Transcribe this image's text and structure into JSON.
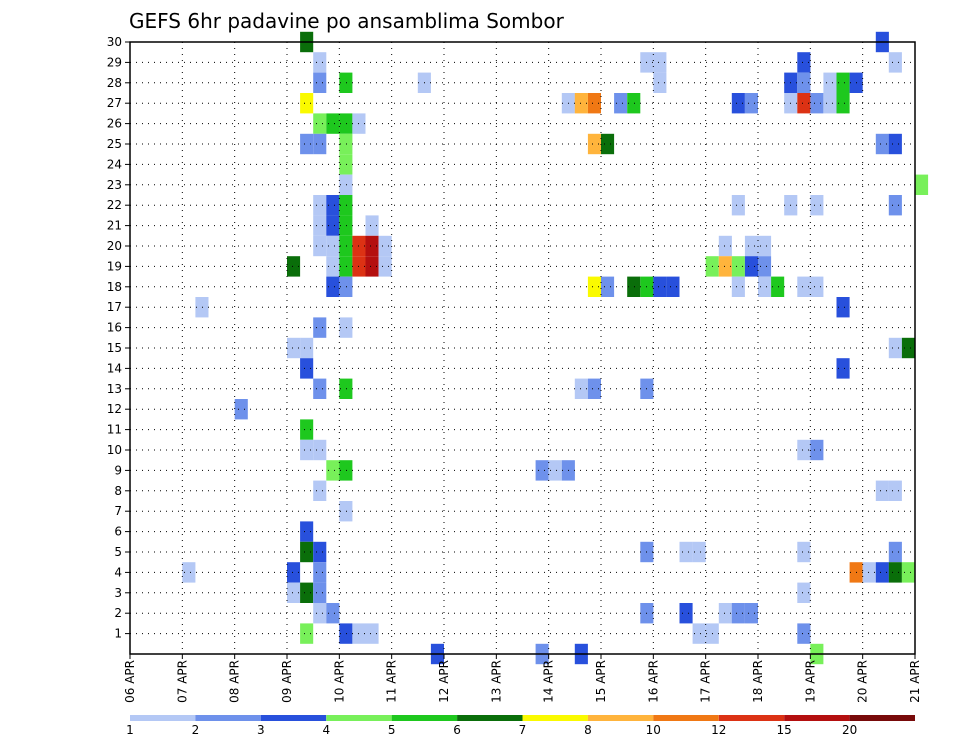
{
  "title": "GEFS 6hr padavine po ansamblima Sombor",
  "chart_data": {
    "type": "heatmap",
    "title": "GEFS 6hr padavine po ansamblima Sombor",
    "x_ticks": [
      "06 APR",
      "07 APR",
      "08 APR",
      "09 APR",
      "10 APR",
      "11 APR",
      "12 APR",
      "13 APR",
      "14 APR",
      "15 APR",
      "16 APR",
      "17 APR",
      "18 APR",
      "19 APR",
      "20 APR",
      "21 APR"
    ],
    "x_range": [
      0,
      15
    ],
    "y_ticks": [
      1,
      2,
      3,
      4,
      5,
      6,
      7,
      8,
      9,
      10,
      11,
      12,
      13,
      14,
      15,
      16,
      17,
      18,
      19,
      20,
      21,
      22,
      23,
      24,
      25,
      26,
      27,
      28,
      29,
      30
    ],
    "y_range": [
      0,
      30
    ],
    "grid": true,
    "colorbar": {
      "labels": [
        "1",
        "2",
        "3",
        "4",
        "5",
        "6",
        "7",
        "8",
        "10",
        "12",
        "15",
        "20"
      ],
      "colors": [
        "#b4c8f5",
        "#6e91eb",
        "#2850dc",
        "#78f05a",
        "#1ec81e",
        "#0a6e0a",
        "#fafa00",
        "#ffb43c",
        "#f07814",
        "#dc3214",
        "#b40f0f",
        "#780a0a"
      ]
    },
    "cells": [
      [
        3.25,
        30,
        5
      ],
      [
        14.25,
        30,
        2
      ],
      [
        3.5,
        29,
        0
      ],
      [
        9.75,
        29,
        0
      ],
      [
        10,
        29,
        0
      ],
      [
        12.75,
        29,
        2
      ],
      [
        14.5,
        29,
        0
      ],
      [
        3.5,
        28,
        1
      ],
      [
        4,
        28,
        4
      ],
      [
        5.5,
        28,
        0
      ],
      [
        10,
        28,
        0
      ],
      [
        12.5,
        28,
        2
      ],
      [
        12.75,
        28,
        1
      ],
      [
        13.25,
        28,
        0
      ],
      [
        13.5,
        28,
        4
      ],
      [
        13.75,
        28,
        2
      ],
      [
        3.25,
        27,
        6
      ],
      [
        8.25,
        27,
        0
      ],
      [
        8.5,
        27,
        7
      ],
      [
        8.75,
        27,
        8
      ],
      [
        9.25,
        27,
        1
      ],
      [
        9.5,
        27,
        4
      ],
      [
        11.5,
        27,
        2
      ],
      [
        11.75,
        27,
        1
      ],
      [
        12.5,
        27,
        0
      ],
      [
        12.75,
        27,
        9
      ],
      [
        13,
        27,
        1
      ],
      [
        13.25,
        27,
        0
      ],
      [
        13.5,
        27,
        4
      ],
      [
        3.5,
        26,
        3
      ],
      [
        3.75,
        26,
        4
      ],
      [
        4,
        26,
        4
      ],
      [
        4.25,
        26,
        0
      ],
      [
        3.25,
        25,
        1
      ],
      [
        3.5,
        25,
        1
      ],
      [
        4,
        25,
        3
      ],
      [
        8.75,
        25,
        7
      ],
      [
        9,
        25,
        5
      ],
      [
        14.25,
        25,
        1
      ],
      [
        14.5,
        25,
        2
      ],
      [
        4,
        24,
        3
      ],
      [
        4,
        23,
        0
      ],
      [
        15,
        23,
        3
      ],
      [
        3.5,
        22,
        0
      ],
      [
        3.75,
        22,
        2
      ],
      [
        4,
        22,
        4
      ],
      [
        11.5,
        22,
        0
      ],
      [
        12.5,
        22,
        0
      ],
      [
        13,
        22,
        0
      ],
      [
        14.5,
        22,
        1
      ],
      [
        3.5,
        21,
        0
      ],
      [
        3.75,
        21,
        2
      ],
      [
        4,
        21,
        4
      ],
      [
        4.5,
        21,
        0
      ],
      [
        3.5,
        20,
        0
      ],
      [
        3.75,
        20,
        0
      ],
      [
        4,
        20,
        4
      ],
      [
        4.25,
        20,
        9
      ],
      [
        4.5,
        20,
        10
      ],
      [
        4.75,
        20,
        0
      ],
      [
        11.25,
        20,
        0
      ],
      [
        11.75,
        20,
        0
      ],
      [
        12,
        20,
        0
      ],
      [
        3.75,
        19,
        0
      ],
      [
        4,
        19,
        4
      ],
      [
        4.25,
        19,
        9
      ],
      [
        4.5,
        19,
        10
      ],
      [
        4.75,
        19,
        0
      ],
      [
        11,
        19,
        3
      ],
      [
        11.25,
        19,
        7
      ],
      [
        11.5,
        19,
        3
      ],
      [
        11.75,
        19,
        2
      ],
      [
        12,
        19,
        1
      ],
      [
        3,
        19,
        5
      ],
      [
        3.75,
        18,
        2
      ],
      [
        4,
        18,
        1
      ],
      [
        8.75,
        18,
        6
      ],
      [
        9,
        18,
        1
      ],
      [
        9.5,
        18,
        5
      ],
      [
        9.75,
        18,
        4
      ],
      [
        10,
        18,
        2
      ],
      [
        10.25,
        18,
        2
      ],
      [
        11.5,
        18,
        0
      ],
      [
        12,
        18,
        0
      ],
      [
        12.25,
        18,
        4
      ],
      [
        12.75,
        18,
        0
      ],
      [
        13,
        18,
        0
      ],
      [
        1.25,
        17,
        0
      ],
      [
        13.5,
        17,
        2
      ],
      [
        3.5,
        16,
        1
      ],
      [
        4,
        16,
        0
      ],
      [
        3,
        15,
        0
      ],
      [
        3.25,
        15,
        0
      ],
      [
        14.5,
        15,
        0
      ],
      [
        14.75,
        15,
        5
      ],
      [
        3.25,
        14,
        2
      ],
      [
        13.5,
        14,
        2
      ],
      [
        3.5,
        13,
        1
      ],
      [
        4,
        13,
        4
      ],
      [
        8.5,
        13,
        0
      ],
      [
        8.75,
        13,
        1
      ],
      [
        9.75,
        13,
        1
      ],
      [
        2,
        12,
        1
      ],
      [
        3.25,
        11,
        4
      ],
      [
        3.25,
        10,
        0
      ],
      [
        3.5,
        10,
        0
      ],
      [
        12.75,
        10,
        0
      ],
      [
        13,
        10,
        1
      ],
      [
        3.75,
        9,
        3
      ],
      [
        4,
        9,
        4
      ],
      [
        7.75,
        9,
        1
      ],
      [
        8,
        9,
        0
      ],
      [
        8.25,
        9,
        1
      ],
      [
        3.5,
        8,
        0
      ],
      [
        14.25,
        8,
        0
      ],
      [
        14.5,
        8,
        0
      ],
      [
        4,
        7,
        0
      ],
      [
        3.25,
        6,
        2
      ],
      [
        3.25,
        5,
        5
      ],
      [
        3.5,
        5,
        2
      ],
      [
        9.75,
        5,
        1
      ],
      [
        10.5,
        5,
        0
      ],
      [
        10.75,
        5,
        0
      ],
      [
        12.75,
        5,
        0
      ],
      [
        14.5,
        5,
        1
      ],
      [
        1,
        4,
        0
      ],
      [
        3,
        4,
        2
      ],
      [
        3.5,
        4,
        1
      ],
      [
        13.75,
        4,
        8
      ],
      [
        14,
        4,
        0
      ],
      [
        14.25,
        4,
        2
      ],
      [
        14.5,
        4,
        5
      ],
      [
        14.75,
        4,
        3
      ],
      [
        3,
        3,
        0
      ],
      [
        3.25,
        3,
        5
      ],
      [
        3.5,
        3,
        1
      ],
      [
        12.75,
        3,
        0
      ],
      [
        3.5,
        2,
        0
      ],
      [
        3.75,
        2,
        1
      ],
      [
        9.75,
        2,
        1
      ],
      [
        10.5,
        2,
        2
      ],
      [
        11.25,
        2,
        0
      ],
      [
        11.5,
        2,
        1
      ],
      [
        11.75,
        2,
        1
      ],
      [
        3.25,
        1,
        3
      ],
      [
        4,
        1,
        2
      ],
      [
        4.25,
        1,
        0
      ],
      [
        4.5,
        1,
        0
      ],
      [
        10.75,
        1,
        0
      ],
      [
        11,
        1,
        0
      ],
      [
        12.75,
        1,
        1
      ],
      [
        5.75,
        0,
        2
      ],
      [
        7.75,
        0,
        1
      ],
      [
        8.5,
        0,
        2
      ],
      [
        13,
        0,
        3
      ]
    ]
  }
}
